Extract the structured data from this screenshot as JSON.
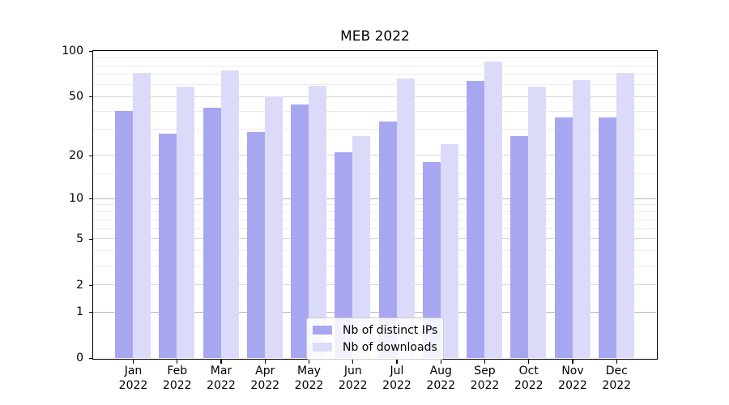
{
  "title": "MEB 2022",
  "chart_data": {
    "type": "bar",
    "title": "MEB 2022",
    "categories": [
      "Jan",
      "Feb",
      "Mar",
      "Apr",
      "May",
      "Jun",
      "Jul",
      "Aug",
      "Sep",
      "Oct",
      "Nov",
      "Dec"
    ],
    "year_label": "2022",
    "series": [
      {
        "name": "Nb of distinct IPs",
        "color": "#a7a7f1",
        "values": [
          40,
          28,
          42,
          29,
          44,
          21,
          34,
          18,
          63,
          27,
          36,
          36
        ]
      },
      {
        "name": "Nb of downloads",
        "color": "#dbdbf9",
        "values": [
          72,
          58,
          74,
          50,
          59,
          27,
          66,
          24,
          85,
          58,
          64,
          72
        ]
      }
    ],
    "ylim": [
      0,
      100
    ],
    "yscale": "log1p",
    "yticks": [
      0,
      1,
      2,
      5,
      10,
      20,
      50,
      100
    ],
    "yticks_minor": [
      3,
      4,
      6,
      7,
      8,
      9,
      15,
      30,
      40,
      60,
      70,
      80,
      90
    ],
    "grid": true,
    "legend_position": "lower center"
  },
  "colors": {
    "grid_major": "#b8b8b8",
    "grid_mid": "#d6d6d6",
    "grid_minor": "#ebebeb",
    "axis": "#000000",
    "legend_bg": "rgba(255,255,255,0.85)",
    "legend_border": "#cccccc"
  }
}
